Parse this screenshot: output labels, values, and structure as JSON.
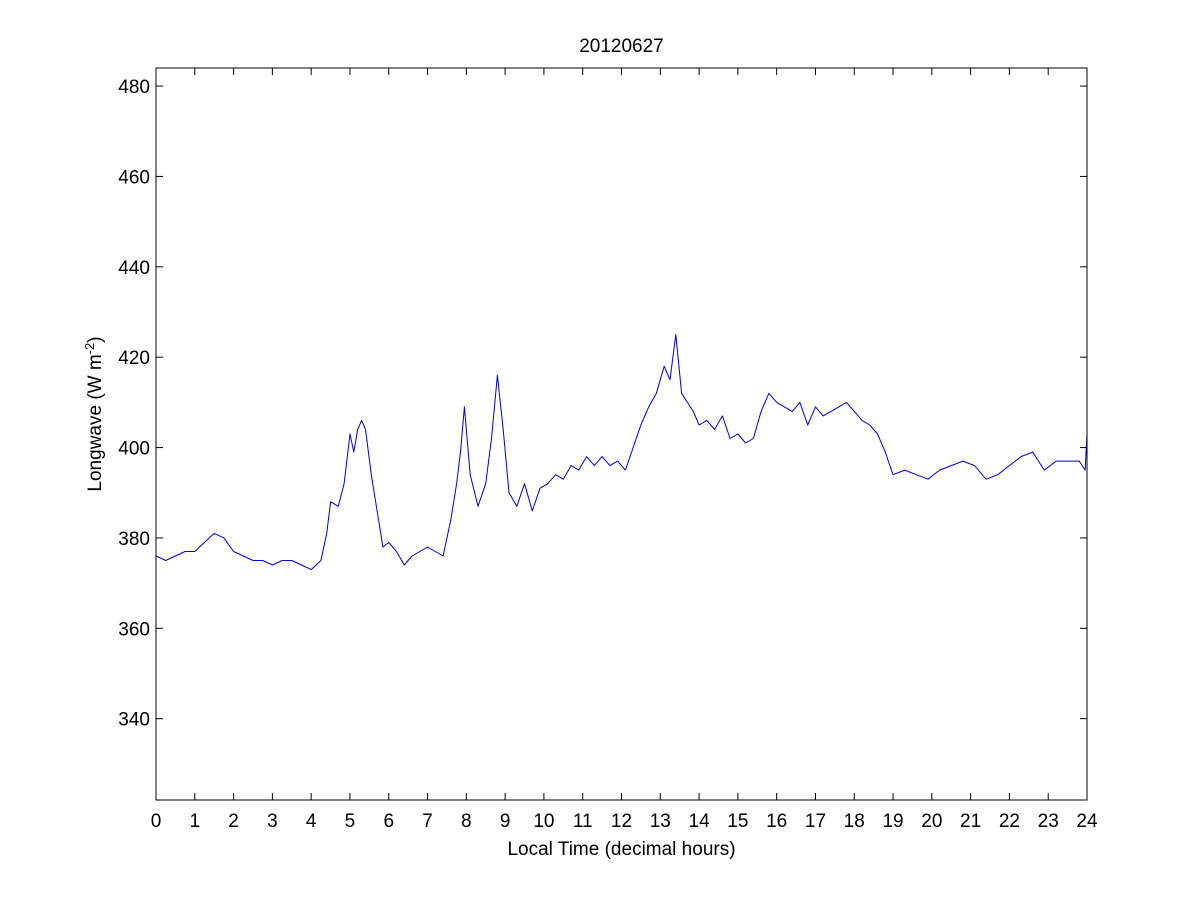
{
  "chart_data": {
    "type": "line",
    "title": "20120627",
    "xlabel": "Local Time (decimal hours)",
    "ylabel_main": "Longwave (W m",
    "ylabel_sup": "-2",
    "ylabel_close": ")",
    "xlim": [
      0,
      24
    ],
    "ylim": [
      322,
      484
    ],
    "xticks": [
      0,
      1,
      2,
      3,
      4,
      5,
      6,
      7,
      8,
      9,
      10,
      11,
      12,
      13,
      14,
      15,
      16,
      17,
      18,
      19,
      20,
      21,
      22,
      23,
      24
    ],
    "xtick_labels": [
      "0",
      "1",
      "2",
      "3",
      "4",
      "5",
      "6",
      "7",
      "8",
      "9",
      "10",
      "11",
      "12",
      "13",
      "14",
      "15",
      "16",
      "17",
      "18",
      "19",
      "20",
      "21",
      "22",
      "23",
      "24"
    ],
    "yticks": [
      340,
      360,
      380,
      400,
      420,
      440,
      460,
      480
    ],
    "ytick_labels": [
      "340",
      "360",
      "380",
      "400",
      "420",
      "440",
      "460",
      "480"
    ],
    "grid": false,
    "line_color": "#0000cc",
    "series": [
      {
        "x": [
          0,
          0.25,
          0.5,
          0.75,
          1.0,
          1.25,
          1.5,
          1.75,
          2.0,
          2.25,
          2.5,
          2.75,
          3.0,
          3.25,
          3.5,
          3.75,
          4.0,
          4.25,
          4.4,
          4.5,
          4.7,
          4.85,
          5.0,
          5.1,
          5.2,
          5.3,
          5.4,
          5.55,
          5.7,
          5.85,
          6.0,
          6.2,
          6.4,
          6.6,
          6.8,
          7.0,
          7.2,
          7.4,
          7.6,
          7.75,
          7.85,
          7.95,
          8.1,
          8.3,
          8.5,
          8.65,
          8.8,
          8.95,
          9.1,
          9.3,
          9.5,
          9.7,
          9.9,
          10.1,
          10.3,
          10.5,
          10.7,
          10.9,
          11.1,
          11.3,
          11.5,
          11.7,
          11.9,
          12.1,
          12.3,
          12.5,
          12.7,
          12.9,
          13.1,
          13.25,
          13.4,
          13.55,
          13.7,
          13.85,
          14.0,
          14.2,
          14.4,
          14.6,
          14.8,
          15.0,
          15.2,
          15.4,
          15.6,
          15.8,
          16.0,
          16.2,
          16.4,
          16.6,
          16.8,
          17.0,
          17.2,
          17.4,
          17.6,
          17.8,
          18.0,
          18.2,
          18.4,
          18.6,
          18.8,
          19.0,
          19.3,
          19.6,
          19.9,
          20.2,
          20.5,
          20.8,
          21.1,
          21.4,
          21.7,
          22.0,
          22.3,
          22.6,
          22.9,
          23.2,
          23.5,
          23.8,
          23.95,
          24.0
        ],
        "y": [
          376,
          375,
          376,
          377,
          377,
          379,
          381,
          380,
          377,
          376,
          375,
          375,
          374,
          375,
          375,
          374,
          373,
          375,
          381,
          388,
          387,
          392,
          403,
          399,
          404,
          406,
          404,
          394,
          386,
          378,
          379,
          377,
          374,
          376,
          377,
          378,
          377,
          376,
          384,
          392,
          399,
          409,
          394,
          387,
          392,
          402,
          416,
          404,
          390,
          387,
          392,
          386,
          391,
          392,
          394,
          393,
          396,
          395,
          398,
          396,
          398,
          396,
          397,
          395,
          400,
          405,
          409,
          412,
          418,
          415,
          425,
          412,
          410,
          408,
          405,
          406,
          404,
          407,
          402,
          403,
          401,
          402,
          408,
          412,
          410,
          409,
          408,
          410,
          405,
          409,
          407,
          408,
          409,
          410,
          408,
          406,
          405,
          403,
          399,
          394,
          395,
          394,
          393,
          395,
          396,
          397,
          396,
          393,
          394,
          396,
          398,
          399,
          395,
          397,
          397,
          397,
          395,
          403
        ]
      }
    ]
  }
}
